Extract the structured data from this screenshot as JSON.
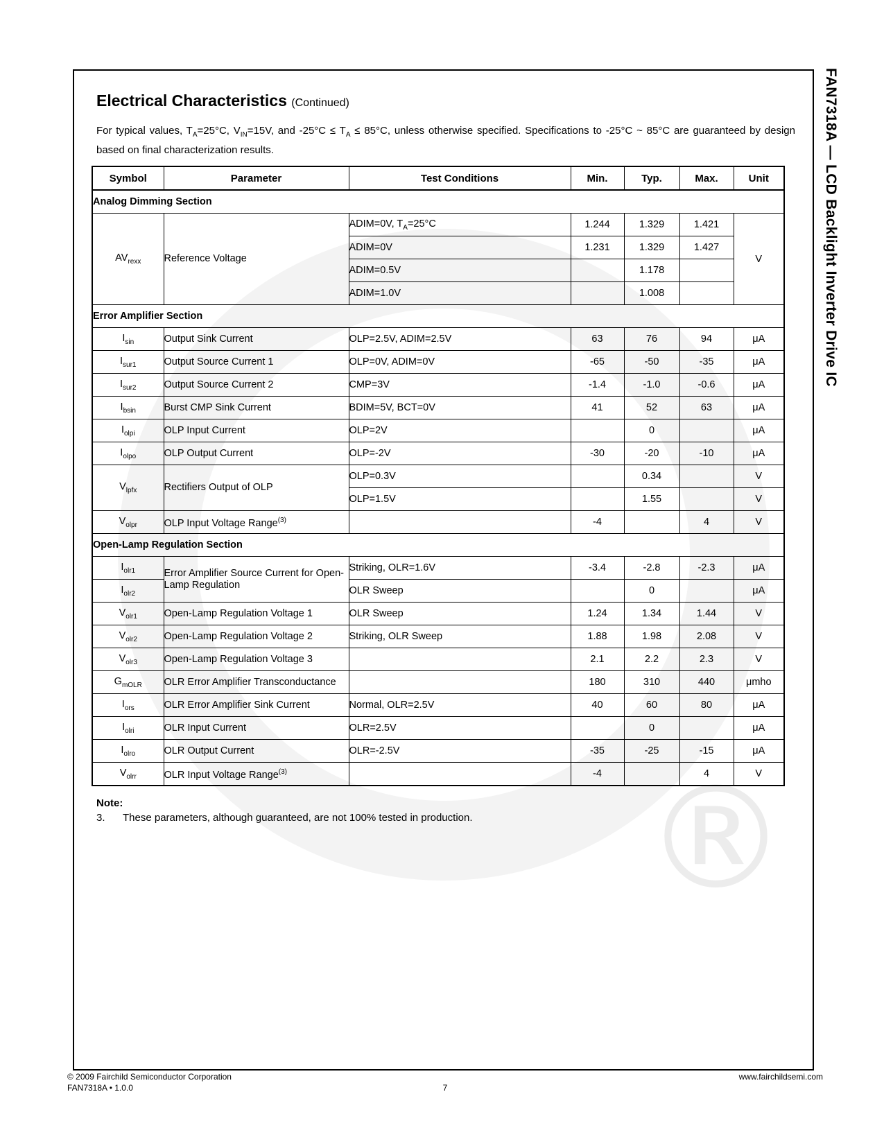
{
  "page": {
    "title": "Electrical Characteristics",
    "title_suffix": "(Continued)",
    "intro": "For typical values, T_{A}=25°C, V_{IN}=15V, and -25°C ≤ T_{A} ≤ 85°C, unless otherwise specified. Specifications to -25°C ~ 85°C are guaranteed by design based on final characterization results.",
    "side_label": "FAN7318A — LCD Backlight Inverter Drive IC"
  },
  "watermark": {
    "reg_symbol": "®"
  },
  "table": {
    "headers": [
      "Symbol",
      "Parameter",
      "Test Conditions",
      "Min.",
      "Typ.",
      "Max.",
      "Unit"
    ],
    "sections": [
      {
        "title": "Analog Dimming Section",
        "rows": [
          {
            "cells": [
              {
                "t": "AV_{rexx}",
                "cls": "sym",
                "rs": 4
              },
              {
                "t": "Reference Voltage",
                "cls": "par",
                "rs": 4
              },
              {
                "t": "ADIM=0V, T_{A}=25°C",
                "cls": "cond tb"
              },
              {
                "t": "1.244",
                "cls": "num tb"
              },
              {
                "t": "1.329",
                "cls": "num tb"
              },
              {
                "t": "1.421",
                "cls": "num tb"
              },
              {
                "t": "V",
                "cls": "unit",
                "rs": 4
              }
            ]
          },
          {
            "cells": [
              {
                "t": "ADIM=0V",
                "cls": "cond"
              },
              {
                "t": "1.231",
                "cls": "num"
              },
              {
                "t": "1.329",
                "cls": "num"
              },
              {
                "t": "1.427",
                "cls": "num"
              }
            ]
          },
          {
            "cells": [
              {
                "t": "ADIM=0.5V",
                "cls": "cond"
              },
              {
                "t": "",
                "cls": "num"
              },
              {
                "t": "1.178",
                "cls": "num"
              },
              {
                "t": "",
                "cls": "num"
              }
            ]
          },
          {
            "cells": [
              {
                "t": "ADIM=1.0V",
                "cls": "cond"
              },
              {
                "t": "",
                "cls": "num"
              },
              {
                "t": "1.008",
                "cls": "num"
              },
              {
                "t": "",
                "cls": "num"
              }
            ]
          }
        ]
      },
      {
        "title": "Error Amplifier Section",
        "rows": [
          {
            "cells": [
              {
                "t": "I_{sin}",
                "cls": "sym"
              },
              {
                "t": "Output Sink Current",
                "cls": "par"
              },
              {
                "t": "OLP=2.5V, ADIM=2.5V",
                "cls": "cond"
              },
              {
                "t": "63",
                "cls": "num"
              },
              {
                "t": "76",
                "cls": "num"
              },
              {
                "t": "94",
                "cls": "num"
              },
              {
                "t": "μA",
                "cls": "unit"
              }
            ]
          },
          {
            "cells": [
              {
                "t": "I_{sur1}",
                "cls": "sym"
              },
              {
                "t": "Output Source Current 1",
                "cls": "par"
              },
              {
                "t": "OLP=0V, ADIM=0V",
                "cls": "cond"
              },
              {
                "t": "-65",
                "cls": "num"
              },
              {
                "t": "-50",
                "cls": "num"
              },
              {
                "t": "-35",
                "cls": "num"
              },
              {
                "t": "μA",
                "cls": "unit"
              }
            ]
          },
          {
            "cells": [
              {
                "t": "I_{sur2}",
                "cls": "sym"
              },
              {
                "t": "Output Source Current 2",
                "cls": "par"
              },
              {
                "t": "CMP=3V",
                "cls": "cond"
              },
              {
                "t": "-1.4",
                "cls": "num"
              },
              {
                "t": "-1.0",
                "cls": "num"
              },
              {
                "t": "-0.6",
                "cls": "num"
              },
              {
                "t": "μA",
                "cls": "unit"
              }
            ]
          },
          {
            "cells": [
              {
                "t": "I_{bsin}",
                "cls": "sym"
              },
              {
                "t": "Burst CMP Sink Current",
                "cls": "par"
              },
              {
                "t": "BDIM=5V, BCT=0V",
                "cls": "cond"
              },
              {
                "t": "41",
                "cls": "num"
              },
              {
                "t": "52",
                "cls": "num"
              },
              {
                "t": "63",
                "cls": "num"
              },
              {
                "t": "μA",
                "cls": "unit"
              }
            ]
          },
          {
            "cells": [
              {
                "t": "I_{olpi}",
                "cls": "sym"
              },
              {
                "t": "OLP Input Current",
                "cls": "par"
              },
              {
                "t": "OLP=2V",
                "cls": "cond"
              },
              {
                "t": "",
                "cls": "num"
              },
              {
                "t": "0",
                "cls": "num"
              },
              {
                "t": "",
                "cls": "num"
              },
              {
                "t": "μA",
                "cls": "unit"
              }
            ]
          },
          {
            "cells": [
              {
                "t": "I_{olpo}",
                "cls": "sym"
              },
              {
                "t": "OLP Output Current",
                "cls": "par"
              },
              {
                "t": "OLP=-2V",
                "cls": "cond"
              },
              {
                "t": "-30",
                "cls": "num"
              },
              {
                "t": "-20",
                "cls": "num"
              },
              {
                "t": "-10",
                "cls": "num"
              },
              {
                "t": "μA",
                "cls": "unit"
              }
            ]
          },
          {
            "cells": [
              {
                "t": "V_{lpfx}",
                "cls": "sym",
                "rs": 2
              },
              {
                "t": "Rectifiers Output of OLP",
                "cls": "par",
                "rs": 2
              },
              {
                "t": "OLP=0.3V",
                "cls": "cond"
              },
              {
                "t": "",
                "cls": "num"
              },
              {
                "t": "0.34",
                "cls": "num"
              },
              {
                "t": "",
                "cls": "num"
              },
              {
                "t": "V",
                "cls": "unit"
              }
            ]
          },
          {
            "cells": [
              {
                "t": "OLP=1.5V",
                "cls": "cond"
              },
              {
                "t": "",
                "cls": "num"
              },
              {
                "t": "1.55",
                "cls": "num"
              },
              {
                "t": "",
                "cls": "num"
              },
              {
                "t": "V",
                "cls": "unit"
              }
            ]
          },
          {
            "cells": [
              {
                "t": "V_{olpr}",
                "cls": "sym"
              },
              {
                "t": "OLP Input Voltage Range^{(3)}",
                "cls": "par"
              },
              {
                "t": "",
                "cls": "cond"
              },
              {
                "t": "-4",
                "cls": "num"
              },
              {
                "t": "",
                "cls": "num"
              },
              {
                "t": "4",
                "cls": "num"
              },
              {
                "t": "V",
                "cls": "unit"
              }
            ]
          }
        ]
      },
      {
        "title": "Open-Lamp Regulation Section",
        "rows": [
          {
            "cells": [
              {
                "t": "I_{olr1}",
                "cls": "sym"
              },
              {
                "t": "Error Amplifier Source Current for Open-Lamp Regulation",
                "cls": "par",
                "rs": 2
              },
              {
                "t": "Striking, OLR=1.6V",
                "cls": "cond"
              },
              {
                "t": "-3.4",
                "cls": "num"
              },
              {
                "t": "-2.8",
                "cls": "num"
              },
              {
                "t": "-2.3",
                "cls": "num"
              },
              {
                "t": "μA",
                "cls": "unit"
              }
            ]
          },
          {
            "cells": [
              {
                "t": "I_{olr2}",
                "cls": "sym"
              },
              {
                "t": "OLR Sweep",
                "cls": "cond"
              },
              {
                "t": "",
                "cls": "num"
              },
              {
                "t": "0",
                "cls": "num"
              },
              {
                "t": "",
                "cls": "num"
              },
              {
                "t": "μA",
                "cls": "unit"
              }
            ]
          },
          {
            "cells": [
              {
                "t": "V_{olr1}",
                "cls": "sym"
              },
              {
                "t": "Open-Lamp Regulation Voltage 1",
                "cls": "par"
              },
              {
                "t": "OLR Sweep",
                "cls": "cond"
              },
              {
                "t": "1.24",
                "cls": "num"
              },
              {
                "t": "1.34",
                "cls": "num"
              },
              {
                "t": "1.44",
                "cls": "num"
              },
              {
                "t": "V",
                "cls": "unit"
              }
            ]
          },
          {
            "cells": [
              {
                "t": "V_{olr2}",
                "cls": "sym"
              },
              {
                "t": "Open-Lamp Regulation Voltage 2",
                "cls": "par"
              },
              {
                "t": "Striking, OLR Sweep",
                "cls": "cond"
              },
              {
                "t": "1.88",
                "cls": "num"
              },
              {
                "t": "1.98",
                "cls": "num"
              },
              {
                "t": "2.08",
                "cls": "num"
              },
              {
                "t": "V",
                "cls": "unit"
              }
            ]
          },
          {
            "cells": [
              {
                "t": "V_{olr3}",
                "cls": "sym"
              },
              {
                "t": "Open-Lamp Regulation Voltage 3",
                "cls": "par"
              },
              {
                "t": "",
                "cls": "cond"
              },
              {
                "t": "2.1",
                "cls": "num"
              },
              {
                "t": "2.2",
                "cls": "num"
              },
              {
                "t": "2.3",
                "cls": "num"
              },
              {
                "t": "V",
                "cls": "unit"
              }
            ]
          },
          {
            "cells": [
              {
                "t": "G_{mOLR}",
                "cls": "sym"
              },
              {
                "t": "OLR Error Amplifier Transconductance",
                "cls": "par"
              },
              {
                "t": "",
                "cls": "cond"
              },
              {
                "t": "180",
                "cls": "num"
              },
              {
                "t": "310",
                "cls": "num"
              },
              {
                "t": "440",
                "cls": "num"
              },
              {
                "t": "μmho",
                "cls": "unit"
              }
            ]
          },
          {
            "cells": [
              {
                "t": "I_{ors}",
                "cls": "sym"
              },
              {
                "t": "OLR Error Amplifier Sink Current",
                "cls": "par"
              },
              {
                "t": "Normal, OLR=2.5V",
                "cls": "cond"
              },
              {
                "t": "40",
                "cls": "num"
              },
              {
                "t": "60",
                "cls": "num"
              },
              {
                "t": "80",
                "cls": "num"
              },
              {
                "t": "μA",
                "cls": "unit"
              }
            ]
          },
          {
            "cells": [
              {
                "t": "I_{olri}",
                "cls": "sym"
              },
              {
                "t": "OLR Input Current",
                "cls": "par"
              },
              {
                "t": "OLR=2.5V",
                "cls": "cond"
              },
              {
                "t": "",
                "cls": "num"
              },
              {
                "t": "0",
                "cls": "num"
              },
              {
                "t": "",
                "cls": "num"
              },
              {
                "t": "μA",
                "cls": "unit"
              }
            ]
          },
          {
            "cells": [
              {
                "t": "I_{olro}",
                "cls": "sym"
              },
              {
                "t": "OLR Output Current",
                "cls": "par"
              },
              {
                "t": "OLR=-2.5V",
                "cls": "cond"
              },
              {
                "t": "-35",
                "cls": "num"
              },
              {
                "t": "-25",
                "cls": "num"
              },
              {
                "t": "-15",
                "cls": "num"
              },
              {
                "t": "μA",
                "cls": "unit"
              }
            ]
          },
          {
            "cells": [
              {
                "t": "V_{olrr}",
                "cls": "sym"
              },
              {
                "t": "OLR Input Voltage Range^{(3)}",
                "cls": "par"
              },
              {
                "t": "",
                "cls": "cond"
              },
              {
                "t": "-4",
                "cls": "num"
              },
              {
                "t": "",
                "cls": "num"
              },
              {
                "t": "4",
                "cls": "num"
              },
              {
                "t": "V",
                "cls": "unit"
              }
            ]
          }
        ]
      }
    ]
  },
  "note": {
    "label": "Note:",
    "number": "3.",
    "text": "These parameters, although guaranteed, are not 100% tested in production."
  },
  "footer": {
    "copyright": "© 2009 Fairchild Semiconductor Corporation",
    "doc_version": "FAN7318A • 1.0.0",
    "page_number": "7",
    "website": "www.fairchildsemi.com"
  }
}
